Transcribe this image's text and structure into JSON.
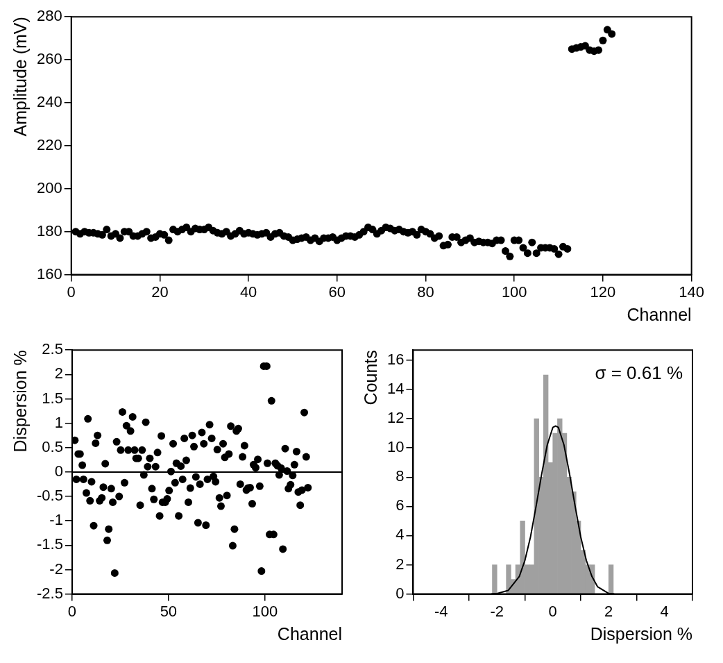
{
  "chart_data": [
    {
      "type": "scatter",
      "xlabel": "Channel",
      "ylabel": "Amplitude (mV)",
      "xlim": [
        0,
        140
      ],
      "xticks": [
        0,
        20,
        40,
        60,
        80,
        100,
        120,
        140
      ],
      "ylim": [
        160,
        280
      ],
      "yticks": [
        160,
        180,
        200,
        220,
        240,
        260,
        280
      ],
      "grid": false,
      "legend": false,
      "marker": "circle",
      "color": "#000000",
      "x": [
        1,
        2,
        3,
        4,
        5,
        6,
        7,
        8,
        9,
        10,
        11,
        12,
        13,
        14,
        15,
        16,
        17,
        18,
        19,
        20,
        21,
        22,
        23,
        24,
        25,
        26,
        27,
        28,
        29,
        30,
        31,
        32,
        33,
        34,
        35,
        36,
        37,
        38,
        39,
        40,
        41,
        42,
        43,
        44,
        45,
        46,
        47,
        48,
        49,
        50,
        51,
        52,
        53,
        54,
        55,
        56,
        57,
        58,
        59,
        60,
        61,
        62,
        63,
        64,
        65,
        66,
        67,
        68,
        69,
        70,
        71,
        72,
        73,
        74,
        75,
        76,
        77,
        78,
        79,
        80,
        81,
        82,
        83,
        84,
        85,
        86,
        87,
        88,
        89,
        90,
        91,
        92,
        93,
        94,
        95,
        96,
        97,
        98,
        99,
        100,
        101,
        102,
        103,
        104,
        105,
        106,
        107,
        108,
        109,
        110,
        111,
        112,
        113,
        114,
        115,
        116,
        117,
        118,
        119,
        120,
        121,
        122
      ],
      "values": [
        180,
        179,
        180,
        179.5,
        179.5,
        179,
        178.5,
        181,
        178,
        179,
        177,
        180,
        180,
        178,
        178,
        179,
        180,
        177,
        177.5,
        179,
        178.5,
        176,
        181,
        180,
        181,
        182,
        180,
        181.5,
        181,
        181,
        182,
        180.5,
        179.5,
        179,
        180,
        178,
        179,
        180.5,
        179,
        179.5,
        179,
        178.5,
        179,
        179.5,
        177.5,
        179,
        179.5,
        178,
        177.5,
        176,
        176.5,
        177,
        177.5,
        176,
        177,
        175.5,
        177,
        177,
        177.5,
        176,
        177,
        178,
        178,
        177.5,
        178.5,
        180,
        182,
        181,
        179,
        180.5,
        182,
        181.5,
        180.5,
        181,
        180,
        179.5,
        180,
        178.5,
        181,
        180,
        179,
        177,
        178,
        173.5,
        174,
        177.5,
        177.5,
        175,
        176,
        177,
        175,
        175.5,
        175,
        175,
        174.5,
        176,
        176,
        171,
        168.5,
        176,
        176,
        172.5,
        170,
        175,
        170,
        172.5,
        172.5,
        172.5,
        172,
        169.5,
        173,
        172,
        265,
        265.5,
        266,
        266.5,
        264.5,
        264,
        264.5,
        269,
        274,
        272
      ]
    },
    {
      "type": "scatter",
      "xlabel": "Channel",
      "ylabel": "Dispersion %",
      "xlim": [
        0,
        140
      ],
      "xticks": [
        0,
        50,
        100
      ],
      "ylim": [
        -2.5,
        2.5
      ],
      "yticks": [
        -2.5,
        -2,
        -1.5,
        -1,
        -0.5,
        0,
        0.5,
        1,
        1.5,
        2,
        2.5
      ],
      "grid": false,
      "legend": false,
      "marker": "circle",
      "color": "#000000",
      "ref_lines": [
        {
          "axis": "y",
          "value": 0,
          "color": "#000000"
        }
      ],
      "x": [
        1.4,
        2.2,
        3.2,
        4.1,
        5.3,
        5.9,
        7.4,
        8.2,
        9.3,
        10.1,
        11.2,
        12.2,
        13.2,
        14.3,
        15.4,
        16.2,
        17.2,
        18.2,
        19,
        20.3,
        21.1,
        22.1,
        23.1,
        24.4,
        25.2,
        26.1,
        27.2,
        28.2,
        29.1,
        30.3,
        31.4,
        32.4,
        33.2,
        34.3,
        35.3,
        36.3,
        37.2,
        38.2,
        39.2,
        40.3,
        41.4,
        42.4,
        43.3,
        44.3,
        45.4,
        46.3,
        46.9,
        48.3,
        49.3,
        50.3,
        51.3,
        52.4,
        53.4,
        54.1,
        55.3,
        56.4,
        57.3,
        58.2,
        59.2,
        60.3,
        61.3,
        62.3,
        63.2,
        64.2,
        65.3,
        66.3,
        67.3,
        68.3,
        69.4,
        70.2,
        71.3,
        72.4,
        73.3,
        74.4,
        75.3,
        76.4,
        77.2,
        78.3,
        79.2,
        80.3,
        81.3,
        82.3,
        83.3,
        84.2,
        85.2,
        86.2,
        87.2,
        88.4,
        89.4,
        90.4,
        91.2,
        92.3,
        93.4,
        94.1,
        95.2,
        96.3,
        97.3,
        98.2,
        99.4,
        100.9,
        101.3,
        102.4,
        103.4,
        104.5,
        105.4,
        106.5,
        107.4,
        108.4,
        109.3,
        110.5,
        111.5,
        112.2,
        113.3,
        114.4,
        115.3,
        116.4,
        117.3,
        118.3,
        119.2,
        120.4,
        121.4,
        122.3
      ],
      "values": [
        0.65,
        -0.15,
        0.37,
        0.37,
        0.14,
        -0.15,
        -0.43,
        1.09,
        -0.59,
        -0.2,
        -1.1,
        0.59,
        0.75,
        -0.59,
        -0.53,
        -0.31,
        0.17,
        -1.4,
        -1.17,
        -0.34,
        -0.62,
        -2.07,
        0.62,
        -0.5,
        0.45,
        1.23,
        -0.22,
        0.95,
        0.45,
        0.84,
        1.13,
        0.45,
        0.28,
        0.28,
        -0.68,
        0.45,
        -0.06,
        1.02,
        0.11,
        0.28,
        -0.34,
        -0.56,
        0.11,
        0.4,
        -0.9,
        0.74,
        -0.62,
        -0.62,
        -0.55,
        -0.38,
        0.01,
        0.58,
        -0.22,
        0.18,
        -0.9,
        0.12,
        -0.15,
        0.69,
        0.24,
        -0.62,
        -0.33,
        0.75,
        0.52,
        -0.1,
        -1.04,
        -0.25,
        0.81,
        0.58,
        -1.09,
        -0.15,
        0.97,
        0.69,
        -0.09,
        -0.2,
        0.46,
        -0.53,
        -0.7,
        0.58,
        0.3,
        -0.48,
        0.37,
        0.94,
        -1.51,
        -1.17,
        0.84,
        0.89,
        -0.25,
        0.31,
        0.54,
        -0.37,
        -0.33,
        -0.32,
        -0.65,
        0.15,
        0.09,
        0.26,
        -0.29,
        -2.03,
        2.17,
        2.17,
        0.18,
        -1.28,
        1.46,
        -1.28,
        0.18,
        0.13,
        -0.06,
        0.08,
        -1.58,
        0.48,
        0.02,
        -0.34,
        -0.26,
        -0.07,
        0.15,
        0.42,
        -0.41,
        -0.68,
        -0.37,
        1.22,
        0.31,
        -0.32
      ]
    },
    {
      "type": "histogram",
      "xlabel": "Dispersion %",
      "ylabel": "Counts",
      "xlim": [
        -5,
        5
      ],
      "xticks": [
        -4,
        -2,
        0,
        2,
        4
      ],
      "ylim": [
        0,
        16.7
      ],
      "yticks": [
        0,
        2,
        4,
        6,
        8,
        10,
        12,
        14,
        16
      ],
      "grid": false,
      "legend": false,
      "color": "#a0a0a0",
      "annotations": [
        "σ = 0.61 %"
      ],
      "bins": [
        -2.1667,
        -2,
        -1.8333,
        -1.6667,
        -1.5,
        -1.3333,
        -1.1667,
        -1,
        -0.8333,
        -0.6667,
        -0.5,
        -0.3333,
        -0.1667,
        0,
        0.1667,
        0.3333,
        0.5,
        0.6667,
        0.8333,
        1,
        1.1667,
        1.3333,
        1.5,
        1.6667,
        1.8333,
        2,
        2.1667
      ],
      "values": [
        2,
        0,
        0,
        2,
        1,
        2,
        5,
        2,
        2,
        12,
        8,
        15,
        9,
        11,
        12,
        11,
        8,
        7,
        5,
        3,
        2,
        2,
        0,
        0,
        0,
        2
      ],
      "series": [
        {
          "type": "line",
          "color": "#000000",
          "x": [
            -2.2,
            -2,
            -1.6,
            -1.2,
            -1,
            -0.8,
            -0.6,
            -0.4,
            -0.2,
            0,
            0.1,
            0.2,
            0.4,
            0.6,
            0.8,
            1,
            1.2,
            1.4,
            1.6,
            2,
            2.2
          ],
          "values": [
            0,
            0.03,
            0.24,
            1.2,
            2.3,
            3.9,
            6,
            8.2,
            10.2,
            11.4,
            11.5,
            11.4,
            10.2,
            8.2,
            6,
            3.9,
            2.3,
            1.2,
            0.5,
            0.03,
            0
          ]
        }
      ]
    }
  ]
}
